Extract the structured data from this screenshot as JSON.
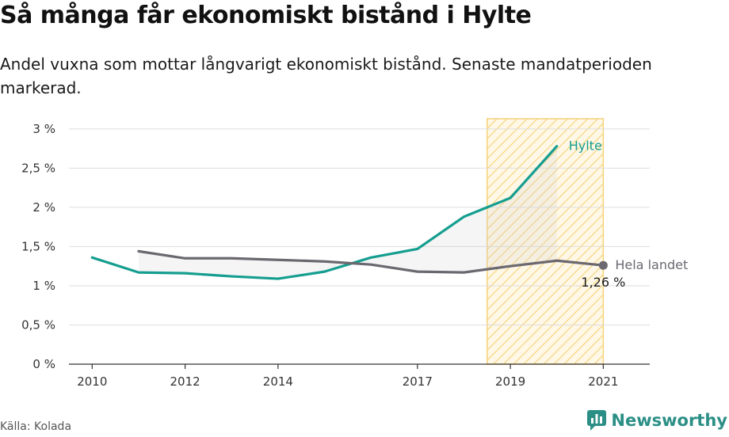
{
  "title": "Så många får ekonomiskt bistånd i Hylte",
  "subtitle": "Andel vuxna som mottar långvarigt ekonomiskt bistånd. Senaste mandatperioden markerad.",
  "source": "Källa: Kolada",
  "brand": "Newsworthy",
  "colors": {
    "hylte": "#159e8f",
    "landet": "#6b6870",
    "highlight": "#f6d27a",
    "grid": "#dddddd",
    "axis": "#333333",
    "brand": "#2b8f86"
  },
  "chart_data": {
    "type": "line",
    "x_ticks": [
      2010,
      2012,
      2014,
      2017,
      2019,
      2021
    ],
    "y_ticks": [
      {
        "value": 0,
        "label": "0 %"
      },
      {
        "value": 0.5,
        "label": "0,5 %"
      },
      {
        "value": 1,
        "label": "1 %"
      },
      {
        "value": 1.5,
        "label": "1,5 %"
      },
      {
        "value": 2,
        "label": "2 %"
      },
      {
        "value": 2.5,
        "label": "2,5 %"
      },
      {
        "value": 3,
        "label": "3 %"
      }
    ],
    "xlim": [
      2009.5,
      2022
    ],
    "ylim": [
      0,
      3.15
    ],
    "grid": true,
    "highlight_period": [
      2018.5,
      2021
    ],
    "series": [
      {
        "name": "Hylte",
        "color_key": "hylte",
        "x": [
          2010,
          2011,
          2012,
          2013,
          2014,
          2015,
          2016,
          2017,
          2018,
          2019,
          2020
        ],
        "y": [
          1.36,
          1.17,
          1.16,
          1.12,
          1.09,
          1.18,
          1.36,
          1.47,
          1.88,
          2.12,
          2.78
        ]
      },
      {
        "name": "Hela landet",
        "color_key": "landet",
        "x": [
          2011,
          2012,
          2013,
          2014,
          2015,
          2016,
          2017,
          2018,
          2019,
          2020,
          2021
        ],
        "y": [
          1.44,
          1.35,
          1.35,
          1.33,
          1.31,
          1.27,
          1.18,
          1.17,
          1.25,
          1.32,
          1.26
        ],
        "end_value_label": "1,26 %"
      }
    ]
  }
}
